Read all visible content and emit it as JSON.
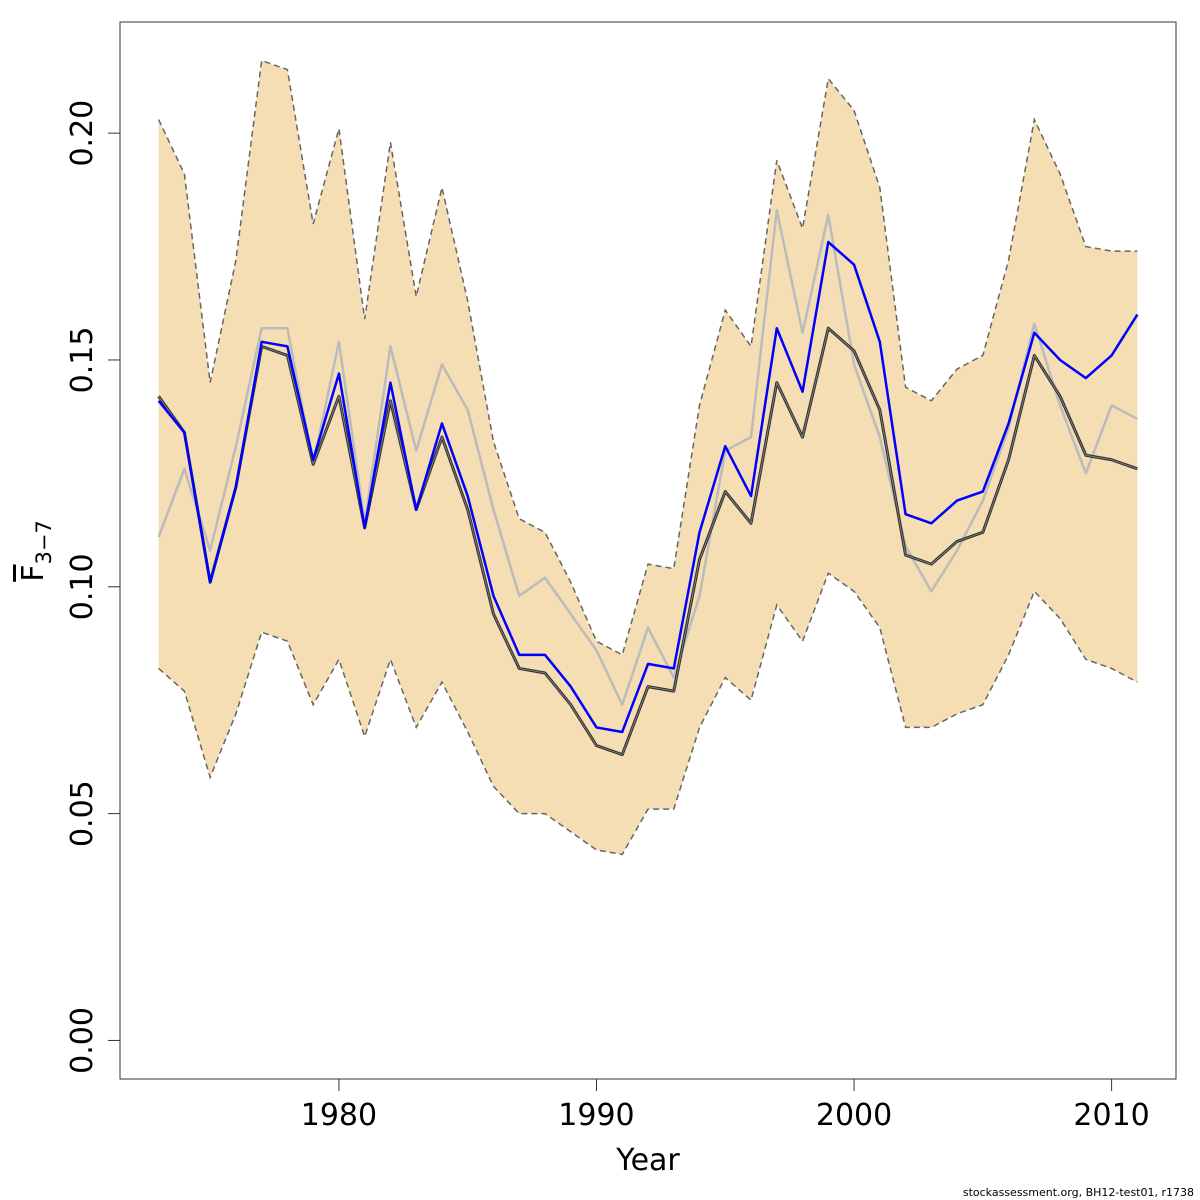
{
  "chart_data": {
    "type": "line",
    "title": "",
    "xlabel": "Year",
    "ylabel": {
      "base": "F",
      "subscript": "3−7"
    },
    "footer": "stockassessment.org, BH12-test01, r1738",
    "xlim": [
      1971.5,
      2012.5
    ],
    "ylim": [
      -0.0085,
      0.2245
    ],
    "x_ticks": [
      1980,
      1990,
      2000,
      2010
    ],
    "x_tick_labels": [
      "1980",
      "1990",
      "2000",
      "2010"
    ],
    "y_ticks": [
      0,
      0.05,
      0.1,
      0.15,
      0.2
    ],
    "y_tick_labels": [
      "0.00",
      "0.05",
      "0.10",
      "0.15",
      "0.20"
    ],
    "grid": false,
    "colors": {
      "band": "#f5deb3",
      "band_edge": "#666666",
      "estimate": "#333333",
      "blue": "#0000ff",
      "grey": "#bbbbbb"
    },
    "x": [
      1973,
      1974,
      1975,
      1976,
      1977,
      1978,
      1979,
      1980,
      1981,
      1982,
      1983,
      1984,
      1985,
      1986,
      1987,
      1988,
      1989,
      1990,
      1991,
      1992,
      1993,
      1994,
      1995,
      1996,
      1997,
      1998,
      1999,
      2000,
      2001,
      2002,
      2003,
      2004,
      2005,
      2006,
      2007,
      2008,
      2009,
      2010,
      2011
    ],
    "band": {
      "upper": [
        0.203,
        0.191,
        0.145,
        0.172,
        0.216,
        0.214,
        0.18,
        0.201,
        0.159,
        0.198,
        0.164,
        0.188,
        0.163,
        0.132,
        0.115,
        0.112,
        0.101,
        0.088,
        0.085,
        0.105,
        0.104,
        0.14,
        0.161,
        0.153,
        0.194,
        0.179,
        0.212,
        0.205,
        0.188,
        0.144,
        0.141,
        0.148,
        0.151,
        0.172,
        0.203,
        0.191,
        0.175,
        0.174,
        0.174
      ],
      "lower": [
        0.082,
        0.077,
        0.058,
        0.072,
        0.09,
        0.088,
        0.074,
        0.084,
        0.067,
        0.084,
        0.069,
        0.079,
        0.068,
        0.056,
        0.05,
        0.05,
        0.046,
        0.042,
        0.041,
        0.051,
        0.051,
        0.069,
        0.08,
        0.075,
        0.096,
        0.088,
        0.103,
        0.099,
        0.091,
        0.069,
        0.069,
        0.072,
        0.074,
        0.085,
        0.099,
        0.093,
        0.084,
        0.082,
        0.079
      ]
    },
    "series": [
      {
        "role": "estimate",
        "values": [
          0.142,
          0.134,
          0.101,
          0.122,
          0.153,
          0.151,
          0.127,
          0.142,
          0.113,
          0.141,
          0.117,
          0.133,
          0.117,
          0.094,
          0.082,
          0.081,
          0.074,
          0.065,
          0.063,
          0.078,
          0.077,
          0.106,
          0.121,
          0.114,
          0.145,
          0.133,
          0.157,
          0.152,
          0.139,
          0.107,
          0.105,
          0.11,
          0.112,
          0.128,
          0.151,
          0.142,
          0.129,
          0.128,
          0.126
        ]
      },
      {
        "role": "blue",
        "values": [
          0.141,
          0.134,
          0.101,
          0.122,
          0.154,
          0.153,
          0.128,
          0.147,
          0.113,
          0.145,
          0.117,
          0.136,
          0.12,
          0.098,
          0.085,
          0.085,
          0.078,
          0.069,
          0.068,
          0.083,
          0.082,
          0.112,
          0.131,
          0.12,
          0.157,
          0.143,
          0.176,
          0.171,
          0.154,
          0.116,
          0.114,
          0.119,
          0.121,
          0.136,
          0.156,
          0.15,
          0.146,
          0.151,
          0.16
        ]
      },
      {
        "role": "grey",
        "values": [
          0.111,
          0.126,
          0.108,
          0.131,
          0.157,
          0.157,
          0.127,
          0.154,
          0.114,
          0.153,
          0.13,
          0.149,
          0.139,
          0.117,
          0.098,
          0.102,
          0.094,
          0.086,
          0.074,
          0.091,
          0.08,
          0.098,
          0.13,
          0.133,
          0.183,
          0.156,
          0.182,
          0.149,
          0.133,
          0.109,
          0.099,
          0.108,
          0.119,
          0.135,
          0.158,
          0.14,
          0.125,
          0.14,
          0.137
        ]
      }
    ]
  }
}
